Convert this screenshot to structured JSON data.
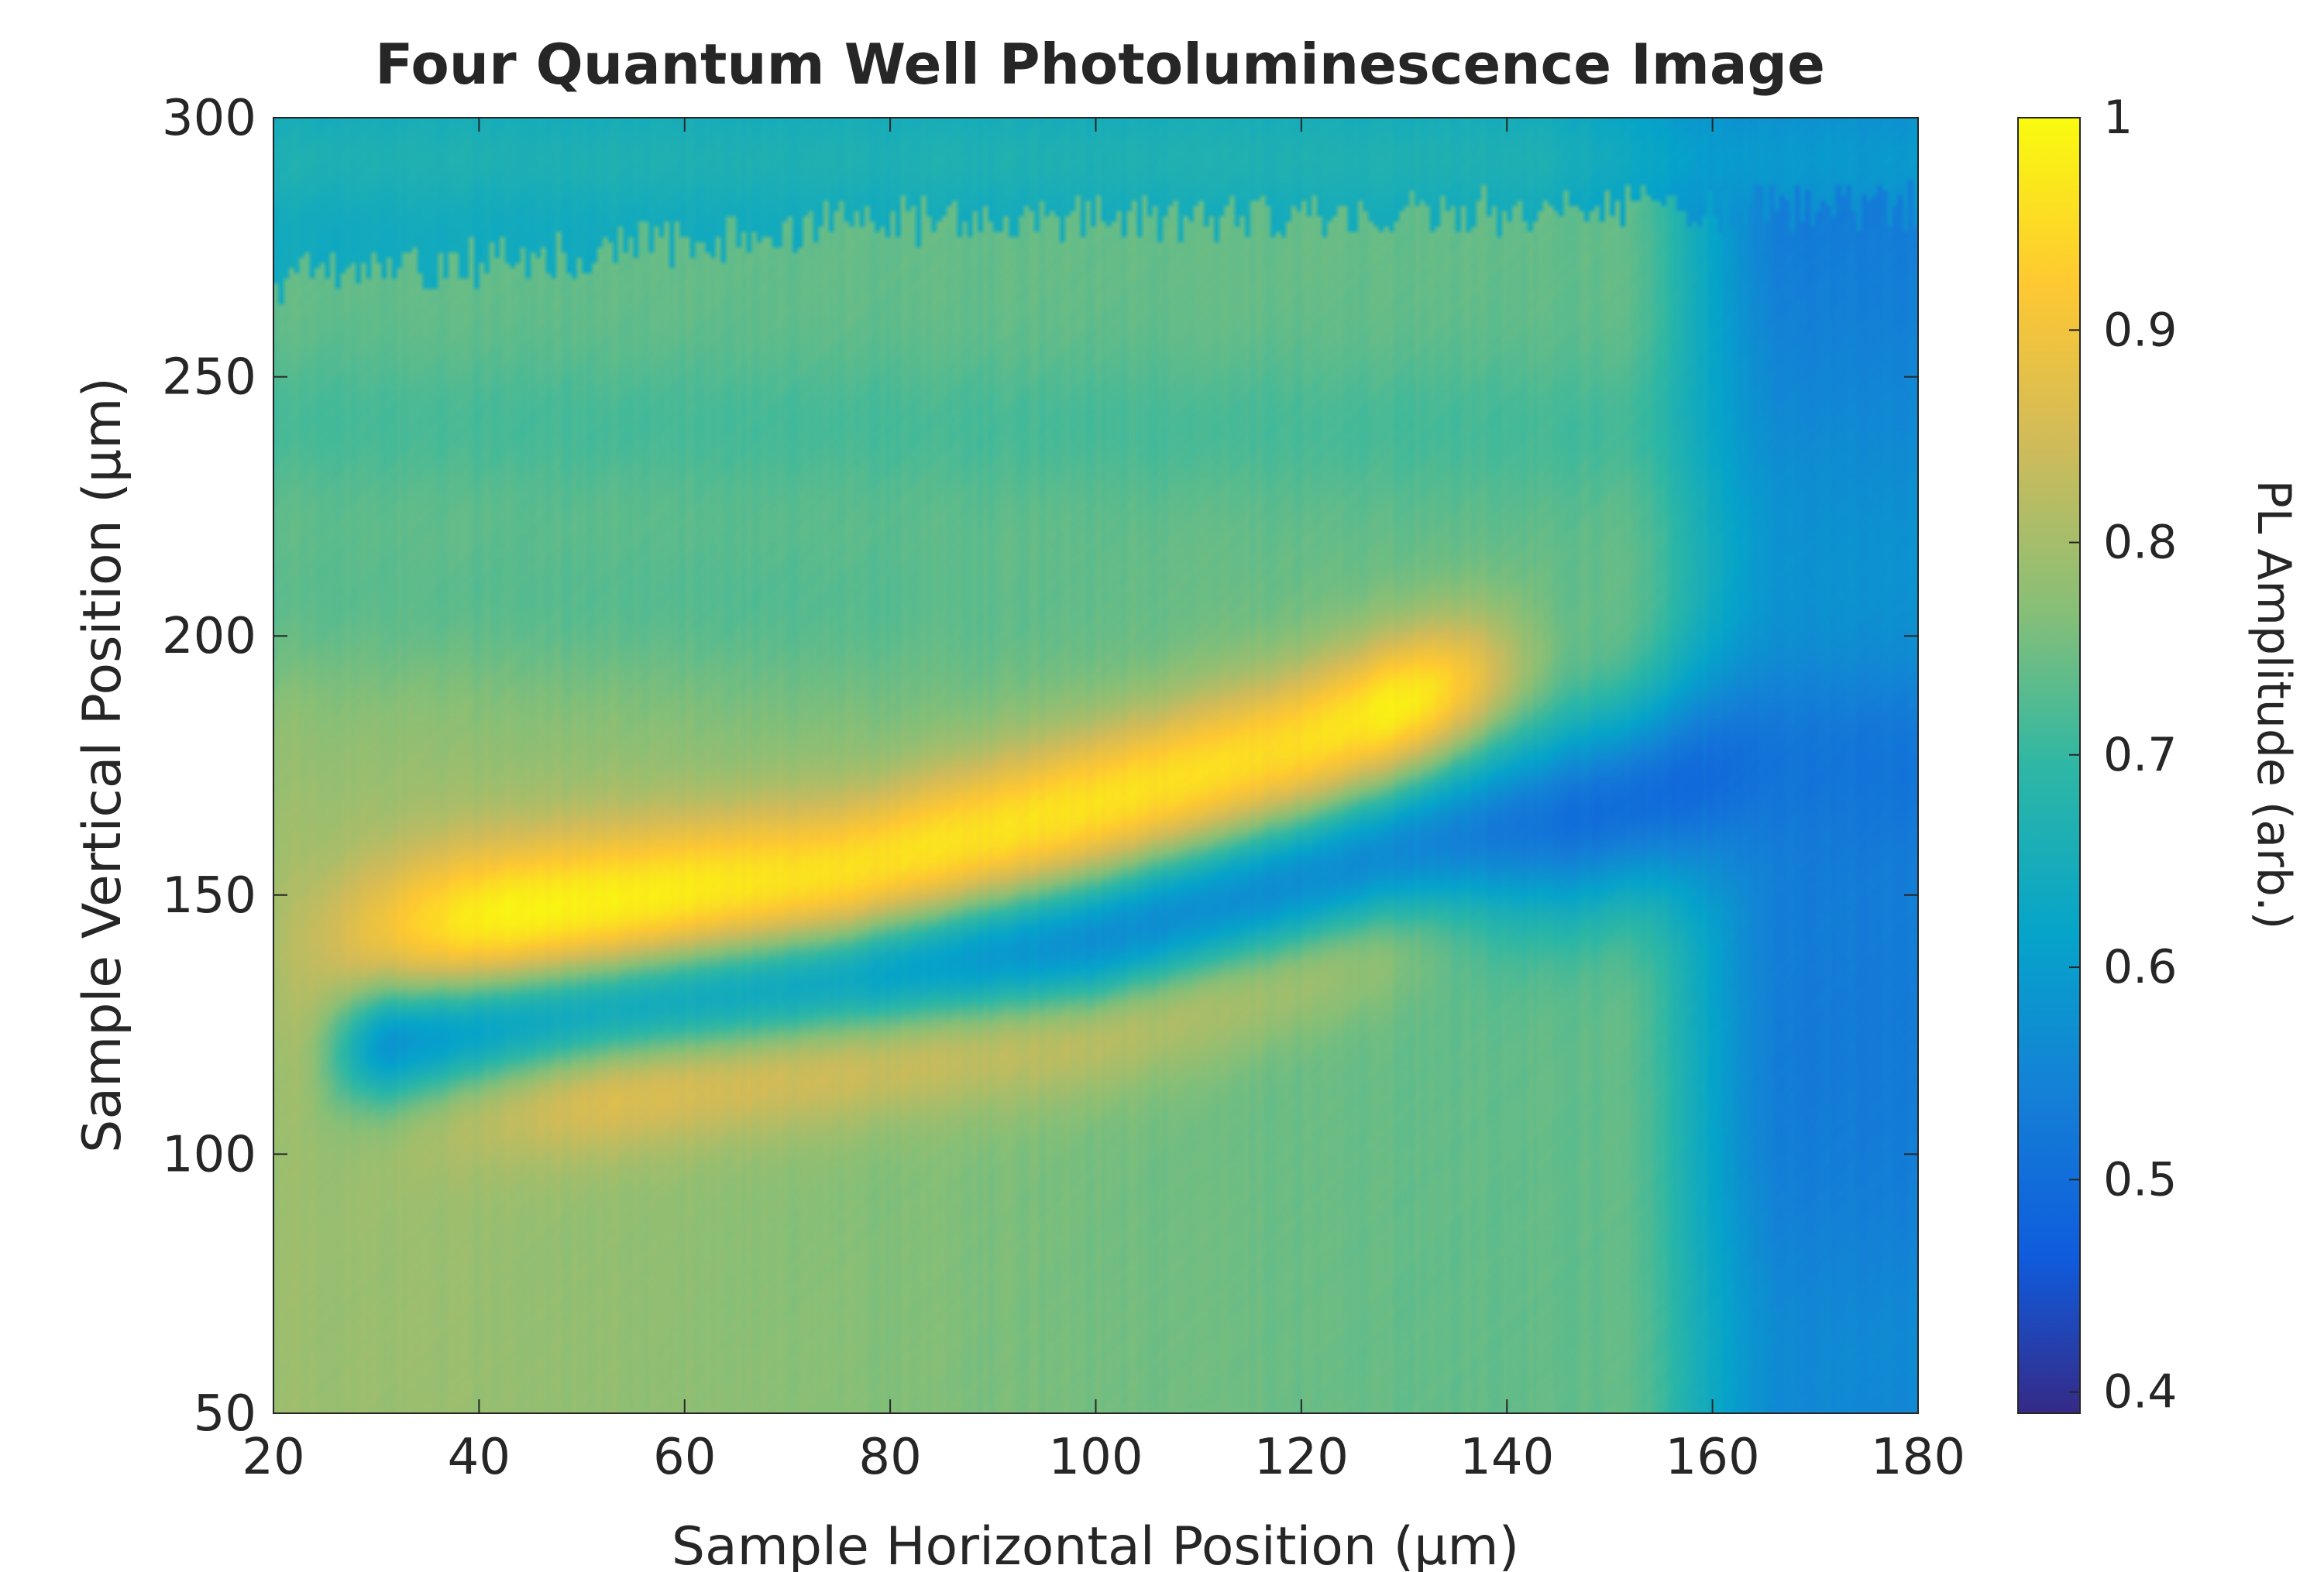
{
  "chart_data": {
    "type": "heatmap",
    "title": "Four Quantum Well Photoluminescence Image",
    "xlabel": "Sample Horizontal Position (µm)",
    "ylabel": "Sample Vertical Position (µm)",
    "colorbar_label": "PL Amplitude (arb.)",
    "colormap": "parula",
    "xlim": [
      20,
      180
    ],
    "ylim": [
      50,
      300
    ],
    "clim": [
      0.39,
      1.0
    ],
    "x_ticks": [
      20,
      40,
      60,
      80,
      100,
      120,
      140,
      160,
      180
    ],
    "y_ticks": [
      50,
      100,
      150,
      200,
      250,
      300
    ],
    "colorbar_ticks": [
      0.4,
      0.5,
      0.6,
      0.7,
      0.8,
      0.9,
      1
    ],
    "x_tick_labels": [
      "20",
      "40",
      "60",
      "80",
      "100",
      "120",
      "140",
      "160",
      "180"
    ],
    "y_tick_labels": [
      "50",
      "100",
      "150",
      "200",
      "250",
      "300"
    ],
    "colorbar_tick_labels": [
      "0.4",
      "0.5",
      "0.6",
      "0.7",
      "0.8",
      "0.9",
      "1"
    ],
    "features": {
      "background_level": 0.74,
      "top_region_level": 0.64,
      "bright_band_upper": {
        "x": [
          20,
          75,
          120,
          138
        ],
        "y": [
          140,
          152,
          178,
          192
        ],
        "peak": 0.97
      },
      "dark_stripe": {
        "x": [
          25,
          100,
          160,
          180
        ],
        "y": [
          120,
          140,
          172,
          185
        ],
        "level": 0.52
      },
      "bright_band_lower": {
        "x": [
          40,
          100,
          140
        ],
        "y": [
          112,
          126,
          150
        ],
        "peak": 0.9
      },
      "right_dark_region": {
        "x_from": 158,
        "level": 0.53
      },
      "noise_boundary_y": [
        268,
        283
      ]
    },
    "grid": false,
    "legend": "colorbar-right"
  }
}
